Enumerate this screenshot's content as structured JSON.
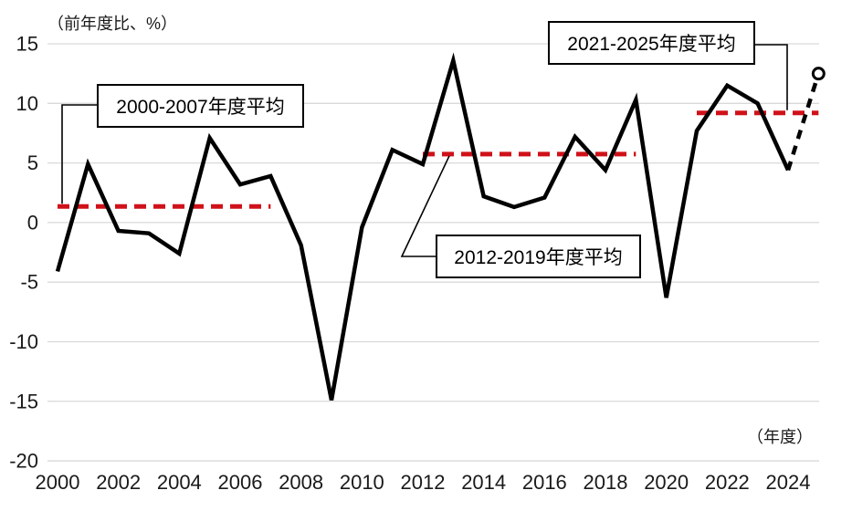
{
  "chart_data": {
    "type": "line",
    "title": "",
    "y_axis_unit_label": "（前年度比、%）",
    "x_axis_unit_label": "（年度）",
    "x": [
      2000,
      2001,
      2002,
      2003,
      2004,
      2005,
      2006,
      2007,
      2008,
      2009,
      2010,
      2011,
      2012,
      2013,
      2014,
      2015,
      2016,
      2017,
      2018,
      2019,
      2020,
      2021,
      2022,
      2023,
      2024,
      2025
    ],
    "values": [
      -4.1,
      4.9,
      -0.7,
      -0.9,
      -2.6,
      7.1,
      3.2,
      3.9,
      -1.9,
      -14.9,
      -0.4,
      6.1,
      4.9,
      13.6,
      2.2,
      1.3,
      2.1,
      7.2,
      4.4,
      10.3,
      -6.3,
      7.7,
      11.5,
      10.0,
      4.4,
      12.5
    ],
    "solid_until": 2024,
    "forecast": {
      "x": 2025,
      "value": 12.5,
      "marker": "open-circle",
      "line_style": "dashed"
    },
    "ylim": [
      -20,
      15
    ],
    "yticks": [
      15,
      10,
      5,
      0,
      -5,
      -10,
      -15,
      -20
    ],
    "xticks": [
      2000,
      2002,
      2004,
      2006,
      2008,
      2010,
      2012,
      2014,
      2016,
      2018,
      2020,
      2022,
      2024
    ],
    "grid": "horizontal",
    "legend": "none",
    "annotations": [
      {
        "label": "2000-2007年度平均",
        "value": 1.35,
        "from": 2000,
        "to": 2007
      },
      {
        "label": "2012-2019年度平均",
        "value": 5.75,
        "from": 2012,
        "to": 2019
      },
      {
        "label": "2021-2025年度平均",
        "value": 9.2,
        "from": 2021,
        "to": 2025
      }
    ],
    "colors": {
      "line": "#000000",
      "average_line": "#d01119",
      "gridline": "#d9d9d9",
      "text": "#1a1a1a"
    }
  }
}
